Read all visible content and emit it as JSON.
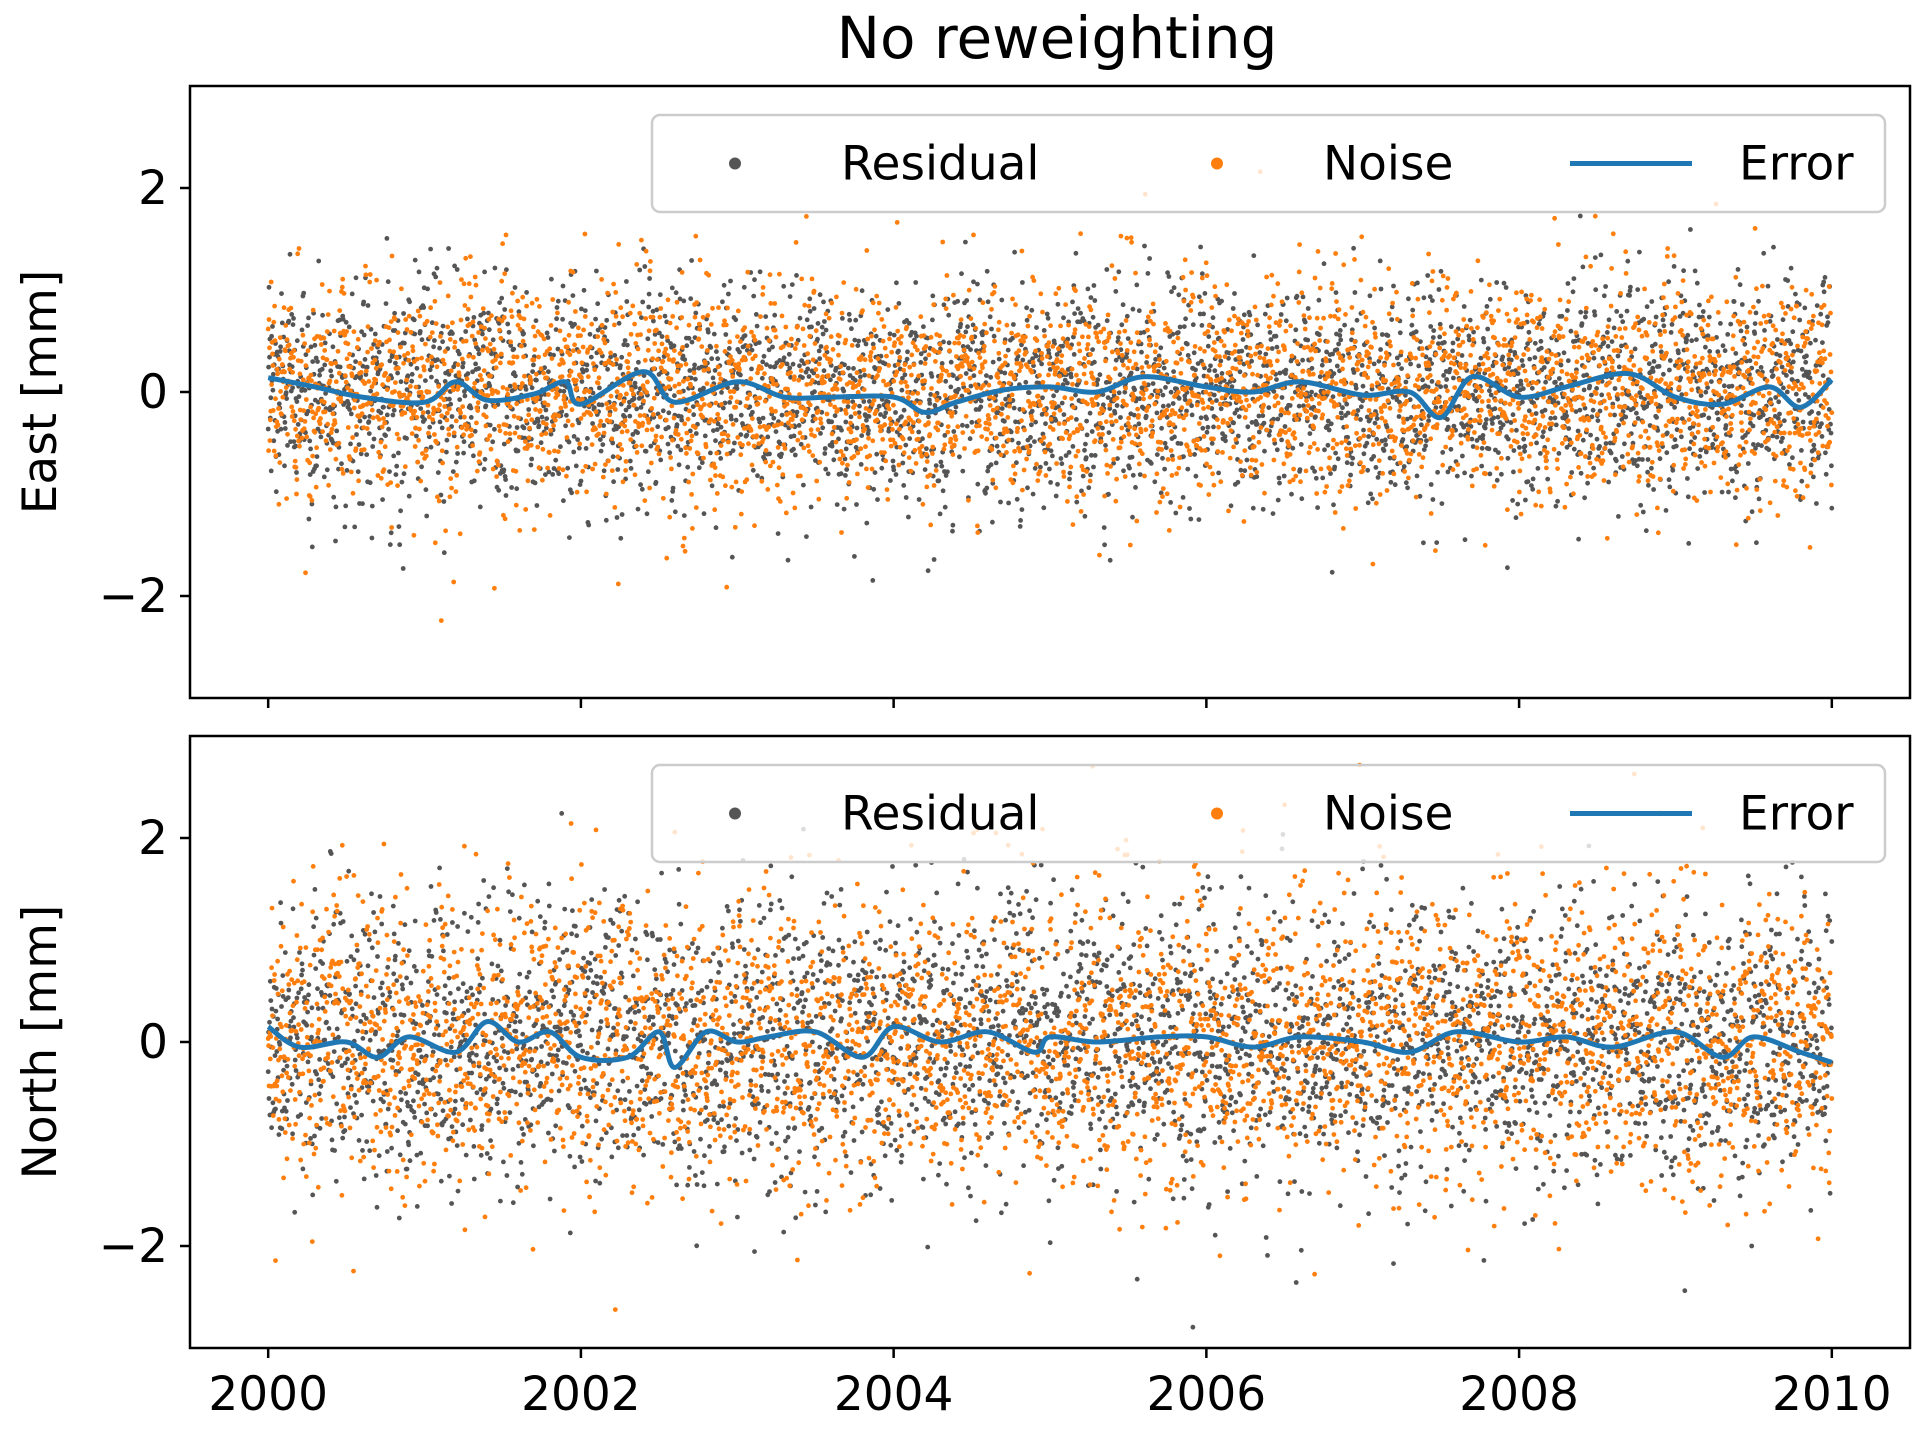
{
  "figure": {
    "title": "No reweighting"
  },
  "legend": {
    "labels": [
      "Residual",
      "Noise",
      "Error"
    ]
  },
  "colors": {
    "residual": "#555555",
    "noise": "#ff7f0e",
    "error": "#1f77b4"
  },
  "chart_data": [
    {
      "type": "scatter",
      "title": "No reweighting",
      "ylabel": "East [mm]",
      "xlabel": "",
      "xlim": [
        1999.5,
        2010.5
      ],
      "ylim": [
        -3,
        3
      ],
      "xticks": [
        2000,
        2002,
        2004,
        2006,
        2008,
        2010
      ],
      "yticks": [
        -2,
        0,
        2
      ],
      "ytick_labels": [
        "−2",
        "0",
        "2"
      ],
      "grid": false,
      "legend_position": "top-right",
      "series": [
        {
          "name": "Residual",
          "kind": "scatter",
          "color": "#555555",
          "x_range": [
            2000,
            2010
          ],
          "approx_std": 0.55,
          "count": 3650
        },
        {
          "name": "Noise",
          "kind": "scatter",
          "color": "#ff7f0e",
          "x_range": [
            2000,
            2010
          ],
          "approx_std": 0.55,
          "count": 3650
        },
        {
          "name": "Error",
          "kind": "line",
          "color": "#1f77b4",
          "x": [
            2000.0,
            2000.3,
            2000.6,
            2001.0,
            2001.2,
            2001.4,
            2001.7,
            2001.9,
            2002.0,
            2002.4,
            2002.6,
            2003.0,
            2003.3,
            2003.6,
            2004.0,
            2004.2,
            2004.4,
            2004.7,
            2005.0,
            2005.3,
            2005.6,
            2006.0,
            2006.3,
            2006.6,
            2007.0,
            2007.3,
            2007.5,
            2007.7,
            2008.0,
            2008.3,
            2008.7,
            2009.0,
            2009.3,
            2009.6,
            2009.8,
            2010.0
          ],
          "y": [
            0.14,
            0.05,
            -0.05,
            -0.1,
            0.1,
            -0.08,
            -0.02,
            0.1,
            -0.12,
            0.2,
            -0.1,
            0.1,
            -0.05,
            -0.05,
            -0.05,
            -0.2,
            -0.1,
            0.02,
            0.05,
            0.0,
            0.15,
            0.05,
            0.0,
            0.1,
            -0.03,
            0.0,
            -0.25,
            0.15,
            -0.05,
            0.05,
            0.18,
            -0.05,
            -0.12,
            0.05,
            -0.15,
            0.12
          ]
        }
      ]
    },
    {
      "type": "scatter",
      "ylabel": "North [mm]",
      "xlabel": "",
      "xlim": [
        1999.5,
        2010.5
      ],
      "ylim": [
        -3,
        3
      ],
      "xticks": [
        2000,
        2002,
        2004,
        2006,
        2008,
        2010
      ],
      "yticks": [
        -2,
        0,
        2
      ],
      "ytick_labels": [
        "−2",
        "0",
        "2"
      ],
      "grid": false,
      "legend_position": "top-right",
      "series": [
        {
          "name": "Residual",
          "kind": "scatter",
          "color": "#555555",
          "x_range": [
            2000,
            2010
          ],
          "approx_std": 0.7,
          "count": 3650
        },
        {
          "name": "Noise",
          "kind": "scatter",
          "color": "#ff7f0e",
          "x_range": [
            2000,
            2010
          ],
          "approx_std": 0.7,
          "count": 3650
        },
        {
          "name": "Error",
          "kind": "line",
          "color": "#1f77b4",
          "x": [
            2000.0,
            2000.2,
            2000.5,
            2000.7,
            2000.9,
            2001.2,
            2001.4,
            2001.6,
            2001.8,
            2002.0,
            2002.3,
            2002.5,
            2002.6,
            2002.8,
            2003.0,
            2003.2,
            2003.5,
            2003.8,
            2004.0,
            2004.3,
            2004.6,
            2004.9,
            2005.0,
            2005.3,
            2005.7,
            2006.0,
            2006.3,
            2006.6,
            2007.0,
            2007.3,
            2007.6,
            2008.0,
            2008.3,
            2008.6,
            2009.0,
            2009.3,
            2009.5,
            2009.8,
            2010.0
          ],
          "y": [
            0.15,
            -0.05,
            0.0,
            -0.15,
            0.05,
            -0.1,
            0.2,
            0.0,
            0.1,
            -0.15,
            -0.15,
            0.1,
            -0.25,
            0.1,
            0.0,
            0.05,
            0.1,
            -0.15,
            0.15,
            0.0,
            0.1,
            -0.1,
            0.05,
            0.0,
            0.05,
            0.05,
            -0.05,
            0.05,
            0.0,
            -0.1,
            0.1,
            0.0,
            0.05,
            -0.05,
            0.1,
            -0.15,
            0.05,
            -0.1,
            -0.2
          ]
        }
      ]
    }
  ]
}
